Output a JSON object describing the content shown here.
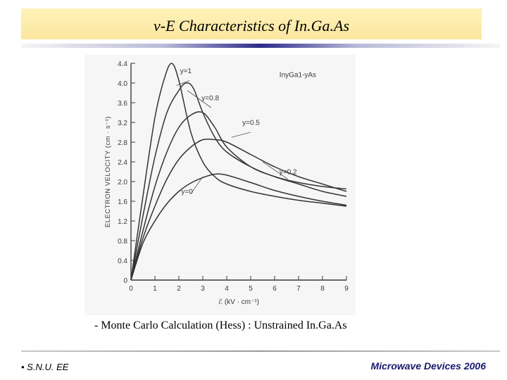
{
  "slide": {
    "title": "v-E Characteristics of In.Ga.As",
    "caption": "- Monte Carlo Calculation (Hess) : Unstrained In.Ga.As",
    "footer_left": "S.N.U. EE",
    "footer_right": "Microwave Devices 2006"
  },
  "chart_data": {
    "type": "line",
    "title": "",
    "xlabel": "ℰ (kV · cm⁻¹)",
    "ylabel": "ELECTRON VELOCITY (cm · s⁻¹)",
    "xlim": [
      0,
      9
    ],
    "ylim": [
      0,
      4.4
    ],
    "x_ticks": [
      "0",
      "1",
      "2",
      "3",
      "4",
      "5",
      "6",
      "7",
      "8",
      "9"
    ],
    "y_ticks": [
      "0",
      "0.4",
      "0.8",
      "1.2",
      "1.6",
      "2.0",
      "2.4",
      "2.8",
      "3.2",
      "3.6",
      "4.0",
      "4.4"
    ],
    "grid": false,
    "annotation": "InyGa1-yAs",
    "series": [
      {
        "name": "y=1",
        "x": [
          0,
          0.5,
          1.0,
          1.4,
          1.7,
          2.0,
          2.5,
          3.0,
          3.5,
          4.0,
          5.0,
          6.0,
          7.0,
          8.0,
          9.0
        ],
        "values": [
          0,
          1.7,
          3.3,
          4.1,
          4.4,
          4.05,
          3.0,
          2.4,
          2.1,
          1.95,
          1.8,
          1.7,
          1.62,
          1.56,
          1.5
        ]
      },
      {
        "name": "y=0.8",
        "x": [
          0,
          0.5,
          1.0,
          1.5,
          2.0,
          2.3,
          2.6,
          3.0,
          3.5,
          4.0,
          5.0,
          6.0,
          7.0,
          8.0,
          9.0
        ],
        "values": [
          0,
          1.3,
          2.5,
          3.4,
          3.85,
          4.0,
          3.9,
          3.4,
          2.9,
          2.6,
          2.3,
          2.1,
          1.98,
          1.9,
          1.85
        ]
      },
      {
        "name": "y=0.5",
        "x": [
          0,
          0.5,
          1.0,
          1.5,
          2.0,
          2.5,
          3.0,
          3.5,
          4.0,
          5.0,
          6.0,
          7.0,
          8.0,
          9.0
        ],
        "values": [
          0,
          1.0,
          1.9,
          2.6,
          3.1,
          3.35,
          3.4,
          3.1,
          2.7,
          2.3,
          2.1,
          1.95,
          1.8,
          1.7
        ]
      },
      {
        "name": "y=0.2",
        "x": [
          0,
          0.5,
          1.0,
          1.5,
          2.0,
          2.5,
          3.0,
          3.5,
          4.0,
          5.0,
          6.0,
          7.0,
          8.0,
          9.0
        ],
        "values": [
          0,
          0.85,
          1.5,
          2.05,
          2.45,
          2.7,
          2.85,
          2.85,
          2.8,
          2.55,
          2.3,
          2.1,
          1.95,
          1.8
        ]
      },
      {
        "name": "y=0",
        "x": [
          0,
          0.5,
          1.0,
          1.5,
          2.0,
          2.5,
          3.0,
          3.5,
          4.0,
          5.0,
          6.0,
          7.0,
          8.0,
          9.0
        ],
        "values": [
          0,
          0.75,
          1.2,
          1.55,
          1.8,
          1.97,
          2.08,
          2.15,
          2.13,
          1.98,
          1.82,
          1.7,
          1.6,
          1.52
        ]
      }
    ],
    "series_labels": [
      "y=1",
      "y=0.8",
      "y=0.5",
      "y=0.2",
      "y=0"
    ]
  }
}
